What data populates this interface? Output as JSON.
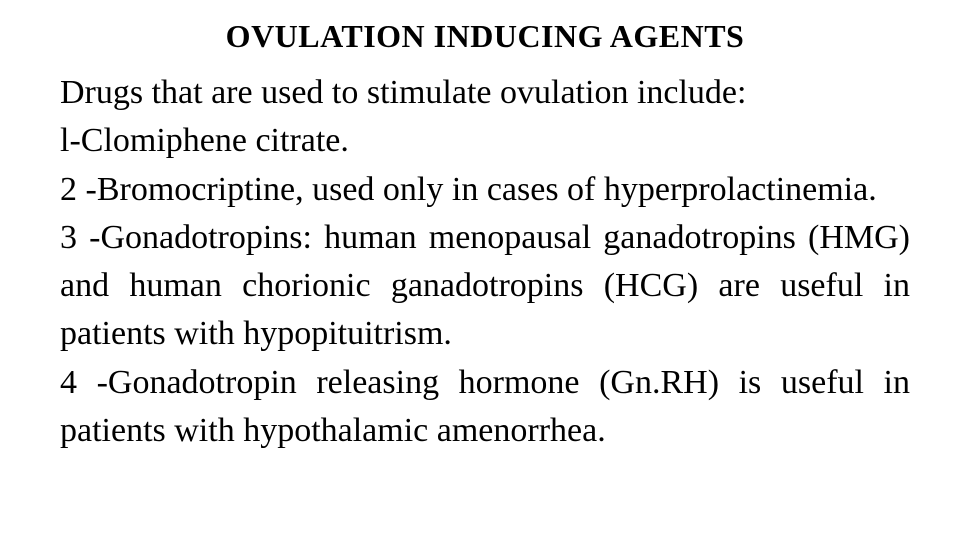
{
  "document": {
    "background_color": "#ffffff",
    "text_color": "#000000",
    "font_family": "Times New Roman",
    "title": {
      "text": "OVULATION INDUCING AGENTS",
      "font_size_pt": 24,
      "font_weight": "bold",
      "align": "center"
    },
    "body": {
      "font_size_pt": 25,
      "align": "justify",
      "line_height": 1.42,
      "intro": "Drugs that are used to stimulate ovulation include:",
      "item1": "l-Clomiphene citrate.",
      "item2": "2 -Bromocriptine, used only in cases of hyperprolactinemia.",
      "item3": "3 -Gonadotropins: human menopausal ganadotropins (HMG) and human chorionic ganadotropins (HCG) are useful in patients with hypopituitrism.",
      "item4": "4 -Gonadotropin releasing hormone (Gn.RH) is useful in patients with hypothalamic amenorrhea."
    }
  }
}
